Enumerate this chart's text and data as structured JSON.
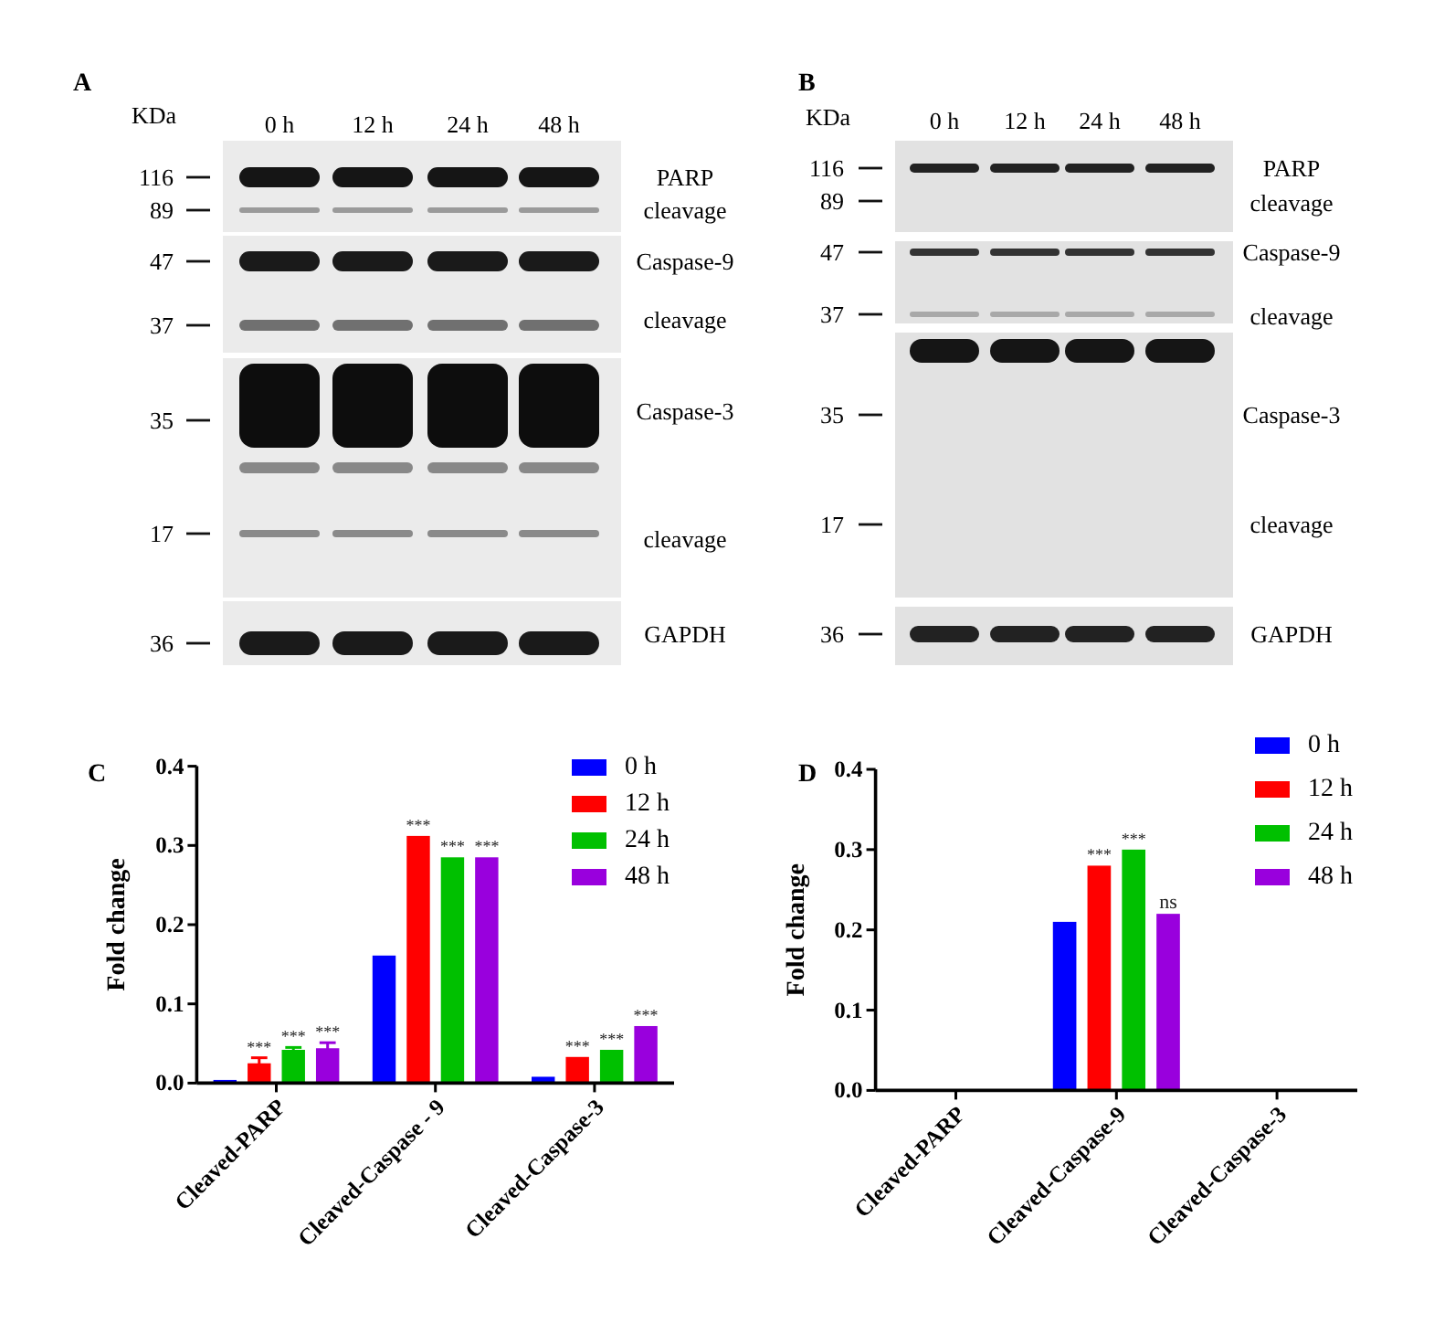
{
  "chart_data": [
    {
      "type": "other",
      "title": "A",
      "ylabel": "KDa",
      "categories": [
        "0 h",
        "12 h",
        "24 h",
        "48 h"
      ],
      "annotations": [
        "116",
        "89",
        "47",
        "37",
        "35",
        "17",
        "36",
        "PARP",
        "cleavage",
        "Caspase-9",
        "cleavage",
        "Caspase-3",
        "cleavage",
        "GAPDH"
      ]
    },
    {
      "type": "other",
      "title": "B",
      "ylabel": "KDa",
      "categories": [
        "0 h",
        "12 h",
        "24 h",
        "48 h"
      ],
      "annotations": [
        "116",
        "89",
        "47",
        "37",
        "35",
        "17",
        "36",
        "PARP",
        "cleavage",
        "Caspase-9",
        "cleavage",
        "Caspase-3",
        "cleavage",
        "GAPDH"
      ]
    },
    {
      "type": "bar",
      "title": "C",
      "ylabel": "Fold change",
      "categories": [
        "Cleaved-PARP",
        "Cleaved-Caspase - 9",
        "Cleaved-Caspase-3"
      ],
      "ylim": [
        0,
        0.4
      ],
      "yticks": [
        {
          "value": 0,
          "label": "0.0"
        },
        0.1,
        0.2,
        0.3,
        0.4
      ],
      "legend": "top right",
      "series": [
        {
          "name": "0 h",
          "color": "#0000ff",
          "values": [
            0.004,
            0.161,
            0.008
          ]
        },
        {
          "name": "12 h",
          "color": "#ff0000",
          "values": [
            0.025,
            0.312,
            0.033
          ],
          "errors": [
            0.007,
            null,
            null
          ],
          "value_labels": [
            "***",
            "***",
            "***"
          ]
        },
        {
          "name": "24 h",
          "color": "#00c000",
          "values": [
            0.042,
            0.285,
            0.042
          ],
          "errors": [
            0.003,
            null,
            null
          ],
          "value_labels": [
            "***",
            "***",
            "***"
          ]
        },
        {
          "name": "48 h",
          "color": "#9900dd",
          "values": [
            0.044,
            0.285,
            0.072
          ],
          "errors": [
            0.007,
            null,
            null
          ],
          "value_labels": [
            "***",
            "***",
            "***"
          ]
        }
      ]
    },
    {
      "type": "bar",
      "title": "D",
      "ylabel": "Fold change",
      "categories": [
        "Cleaved-PARP",
        "Cleaved-Caspase-9",
        "Cleaved-Caspase-3"
      ],
      "ylim": [
        0,
        0.4
      ],
      "yticks": [
        {
          "value": 0,
          "label": "0.0"
        },
        0.1,
        0.2,
        0.3,
        0.4
      ],
      "legend": "top right",
      "series": [
        {
          "name": "0 h",
          "color": "#0000ff",
          "values": [
            null,
            0.21,
            null
          ]
        },
        {
          "name": "12 h",
          "color": "#ff0000",
          "values": [
            null,
            0.28,
            null
          ],
          "value_labels": [
            null,
            "***",
            null
          ]
        },
        {
          "name": "24 h",
          "color": "#00c000",
          "values": [
            null,
            0.3,
            null
          ],
          "value_labels": [
            null,
            "***",
            null
          ]
        },
        {
          "name": "48 h",
          "color": "#9900dd",
          "values": [
            null,
            0.22,
            null
          ],
          "value_labels": [
            null,
            "ns",
            null
          ]
        }
      ]
    }
  ]
}
